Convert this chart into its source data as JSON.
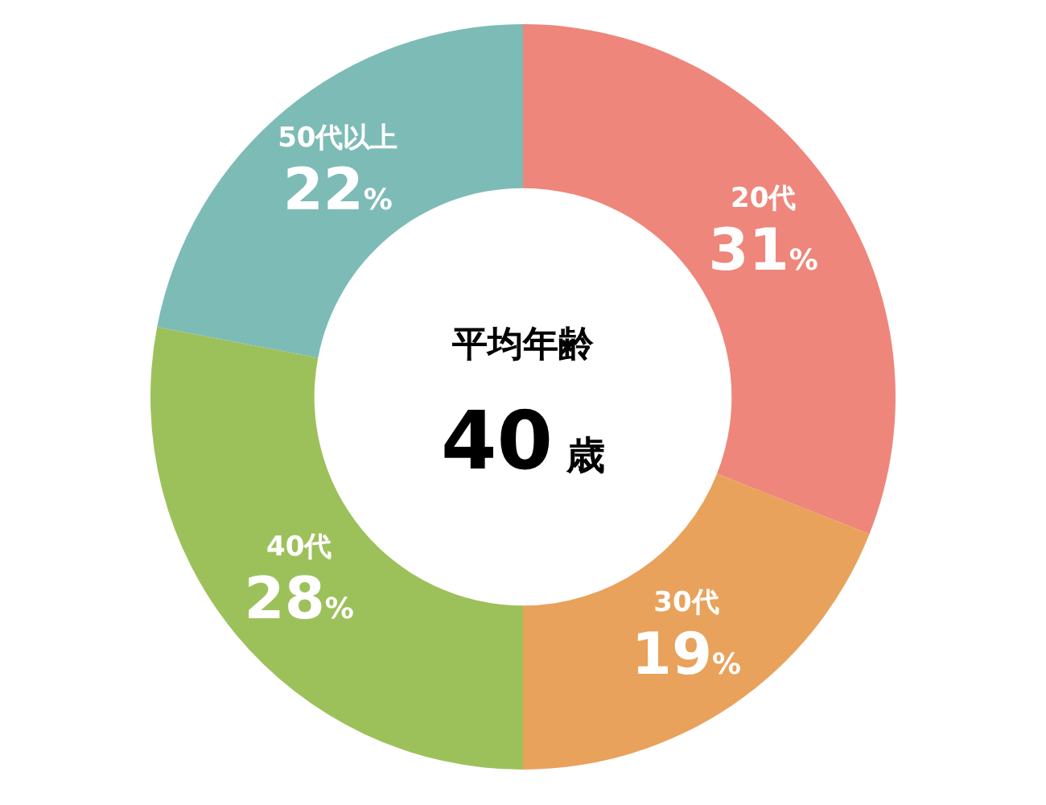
{
  "chart_data": {
    "type": "donut",
    "categories": [
      "20代",
      "30代",
      "40代",
      "50代以上"
    ],
    "values": [
      31,
      19,
      28,
      22
    ],
    "value_labels": [
      "31%",
      "19%",
      "28%",
      "22%"
    ],
    "colors": [
      "#ee867b",
      "#e8a25b",
      "#9dc15a",
      "#7dbbb6"
    ],
    "annotations": [
      "平均年齢",
      "40歳"
    ],
    "legend": false
  }
}
